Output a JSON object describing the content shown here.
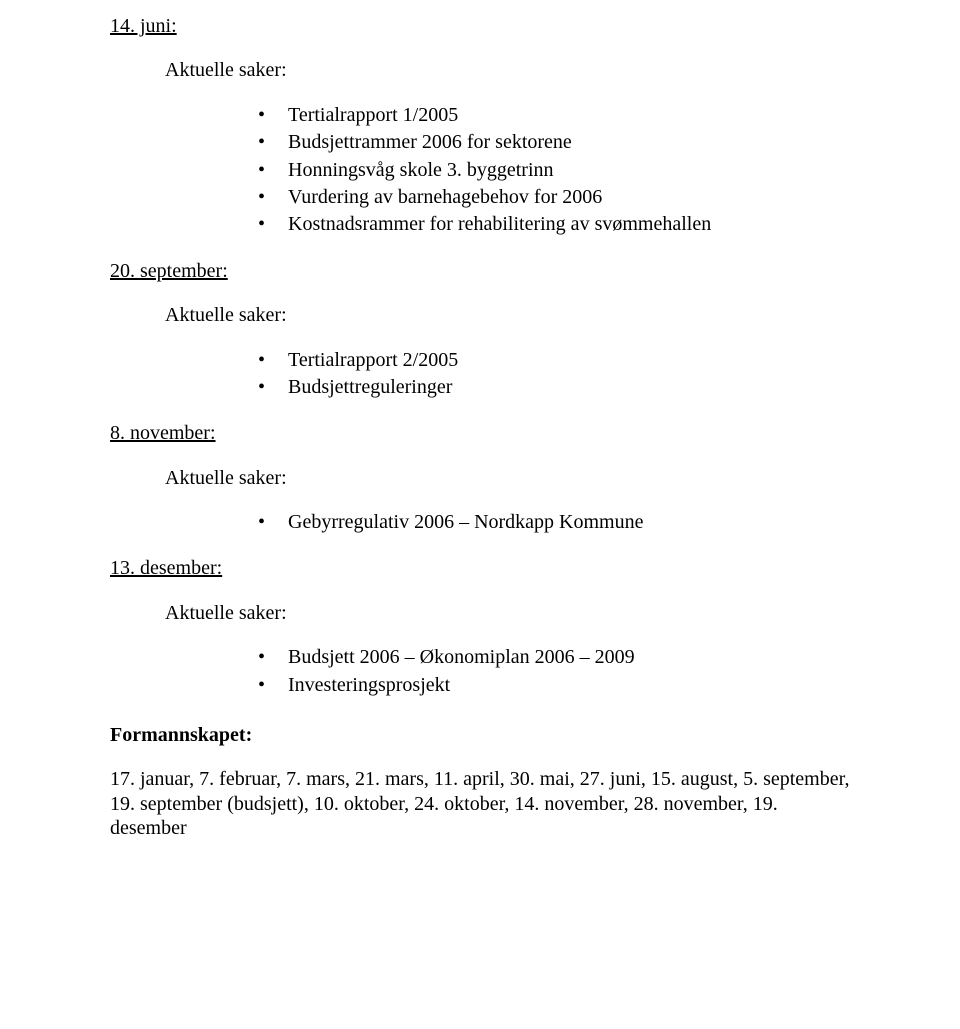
{
  "dates": {
    "jun14": "14. juni:",
    "sep20": "20. september:",
    "nov8": "8. november:",
    "dec13": "13. desember:"
  },
  "aktuelle_label": "Aktuelle saker:",
  "bullets": {
    "jun14": [
      "Tertialrapport 1/2005",
      "Budsjettrammer 2006 for sektorene",
      "Honningsvåg skole 3. byggetrinn",
      "Vurdering av barnehagebehov for 2006",
      "Kostnadsrammer for rehabilitering av svømmehallen"
    ],
    "sep20": [
      "Tertialrapport 2/2005",
      "Budsjettreguleringer"
    ],
    "nov8": [
      "Gebyrregulativ 2006 – Nordkapp Kommune"
    ],
    "dec13": [
      "Budsjett 2006 – Økonomiplan 2006 – 2009",
      "Investeringsprosjekt"
    ]
  },
  "formannskapet": {
    "heading": "Formannskapet:",
    "text": "17. januar, 7. februar, 7. mars, 21. mars, 11. april, 30. mai, 27. juni, 15. august, 5. september, 19. september (budsjett), 10. oktober, 24. oktober, 14. november, 28. november, 19. desember"
  }
}
